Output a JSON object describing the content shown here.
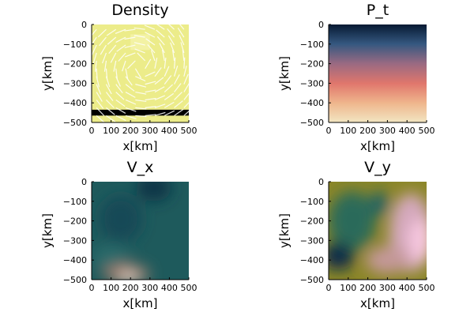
{
  "figure": {
    "panel_count": 4
  },
  "chart_data": [
    {
      "type": "heatmap",
      "title": "Density",
      "xlabel": "x[km]",
      "ylabel": "y[km]",
      "xlim": [
        0,
        500
      ],
      "ylim": [
        -500,
        0
      ],
      "xticks": [
        0,
        100,
        200,
        300,
        400,
        500
      ],
      "yticks": [
        0,
        -100,
        -200,
        -300,
        -400,
        -500
      ],
      "xtick_labels": [
        "0",
        "100",
        "200",
        "300",
        "400",
        "500"
      ],
      "ytick_labels": [
        "0",
        "−100",
        "−200",
        "−300",
        "−400",
        "−500"
      ],
      "background_color": "#ecec8a",
      "features": [
        {
          "kind": "band",
          "from_y": -435,
          "to_y": -465,
          "color": "#000000"
        },
        {
          "kind": "block",
          "x": [
            200,
            300
          ],
          "y": [
            -50,
            -130
          ],
          "color": "#f4f3a8"
        }
      ],
      "flow_arrows": true,
      "arrow_color": "#ffffff"
    },
    {
      "type": "heatmap",
      "title": "P_t",
      "xlabel": "x[km]",
      "ylabel": "y[km]",
      "xlim": [
        0,
        500
      ],
      "ylim": [
        -500,
        0
      ],
      "xticks": [
        0,
        100,
        200,
        300,
        400,
        500
      ],
      "yticks": [
        0,
        -100,
        -200,
        -300,
        -400,
        -500
      ],
      "xtick_labels": [
        "0",
        "100",
        "200",
        "300",
        "400",
        "500"
      ],
      "ytick_labels": [
        "0",
        "−100",
        "−200",
        "−300",
        "−400",
        "−500"
      ],
      "gradient": {
        "direction": "vertical",
        "stops": [
          {
            "y": 0,
            "color": "#071a33"
          },
          {
            "y": -100,
            "color": "#355880"
          },
          {
            "y": -200,
            "color": "#9a6a82"
          },
          {
            "y": -300,
            "color": "#e0766c"
          },
          {
            "y": -400,
            "color": "#efb58c"
          },
          {
            "y": -500,
            "color": "#f2e6c2"
          }
        ]
      }
    },
    {
      "type": "heatmap",
      "title": "V_x",
      "xlabel": "x[km]",
      "ylabel": "y[km]",
      "xlim": [
        0,
        500
      ],
      "ylim": [
        -500,
        0
      ],
      "xticks": [
        0,
        100,
        200,
        300,
        400,
        500
      ],
      "yticks": [
        0,
        -100,
        -200,
        -300,
        -400,
        -500
      ],
      "xtick_labels": [
        "0",
        "100",
        "200",
        "300",
        "400",
        "500"
      ],
      "ytick_labels": [
        "0",
        "−100",
        "−200",
        "−300",
        "−400",
        "−500"
      ],
      "background_color": "#1e5a5c",
      "blobs": [
        {
          "x": 320,
          "y": -30,
          "rx": 90,
          "ry": 70,
          "color": "#0e3447"
        },
        {
          "x": 150,
          "y": -190,
          "rx": 110,
          "ry": 120,
          "color": "#184a56"
        },
        {
          "x": 100,
          "y": -390,
          "rx": 100,
          "ry": 70,
          "color": "#2a6a6a"
        },
        {
          "x": 180,
          "y": -470,
          "rx": 120,
          "ry": 50,
          "color": "#9a7a6a"
        },
        {
          "x": 190,
          "y": -490,
          "rx": 45,
          "ry": 22,
          "color": "#ffe6d8"
        }
      ]
    },
    {
      "type": "heatmap",
      "title": "V_y",
      "xlabel": "x[km]",
      "ylabel": "y[km]",
      "xlim": [
        0,
        500
      ],
      "ylim": [
        -500,
        0
      ],
      "xticks": [
        0,
        100,
        200,
        300,
        400,
        500
      ],
      "yticks": [
        0,
        -100,
        -200,
        -300,
        -400,
        -500
      ],
      "xtick_labels": [
        "0",
        "100",
        "200",
        "300",
        "400",
        "500"
      ],
      "ytick_labels": [
        "0",
        "−100",
        "−200",
        "−300",
        "−400",
        "−500"
      ],
      "background_color": "#8b8628",
      "blobs": [
        {
          "x": 120,
          "y": -200,
          "rx": 120,
          "ry": 150,
          "color": "#2a6a5a"
        },
        {
          "x": 260,
          "y": -110,
          "rx": 45,
          "ry": 60,
          "color": "#1e6068"
        },
        {
          "x": 50,
          "y": -380,
          "rx": 80,
          "ry": 70,
          "color": "#0e2c48"
        },
        {
          "x": 420,
          "y": -260,
          "rx": 110,
          "ry": 200,
          "color": "#d4a8bc"
        },
        {
          "x": 470,
          "y": -300,
          "rx": 60,
          "ry": 110,
          "color": "#f7c7e0"
        },
        {
          "x": 300,
          "y": -400,
          "rx": 110,
          "ry": 70,
          "color": "#c49898"
        }
      ]
    }
  ]
}
